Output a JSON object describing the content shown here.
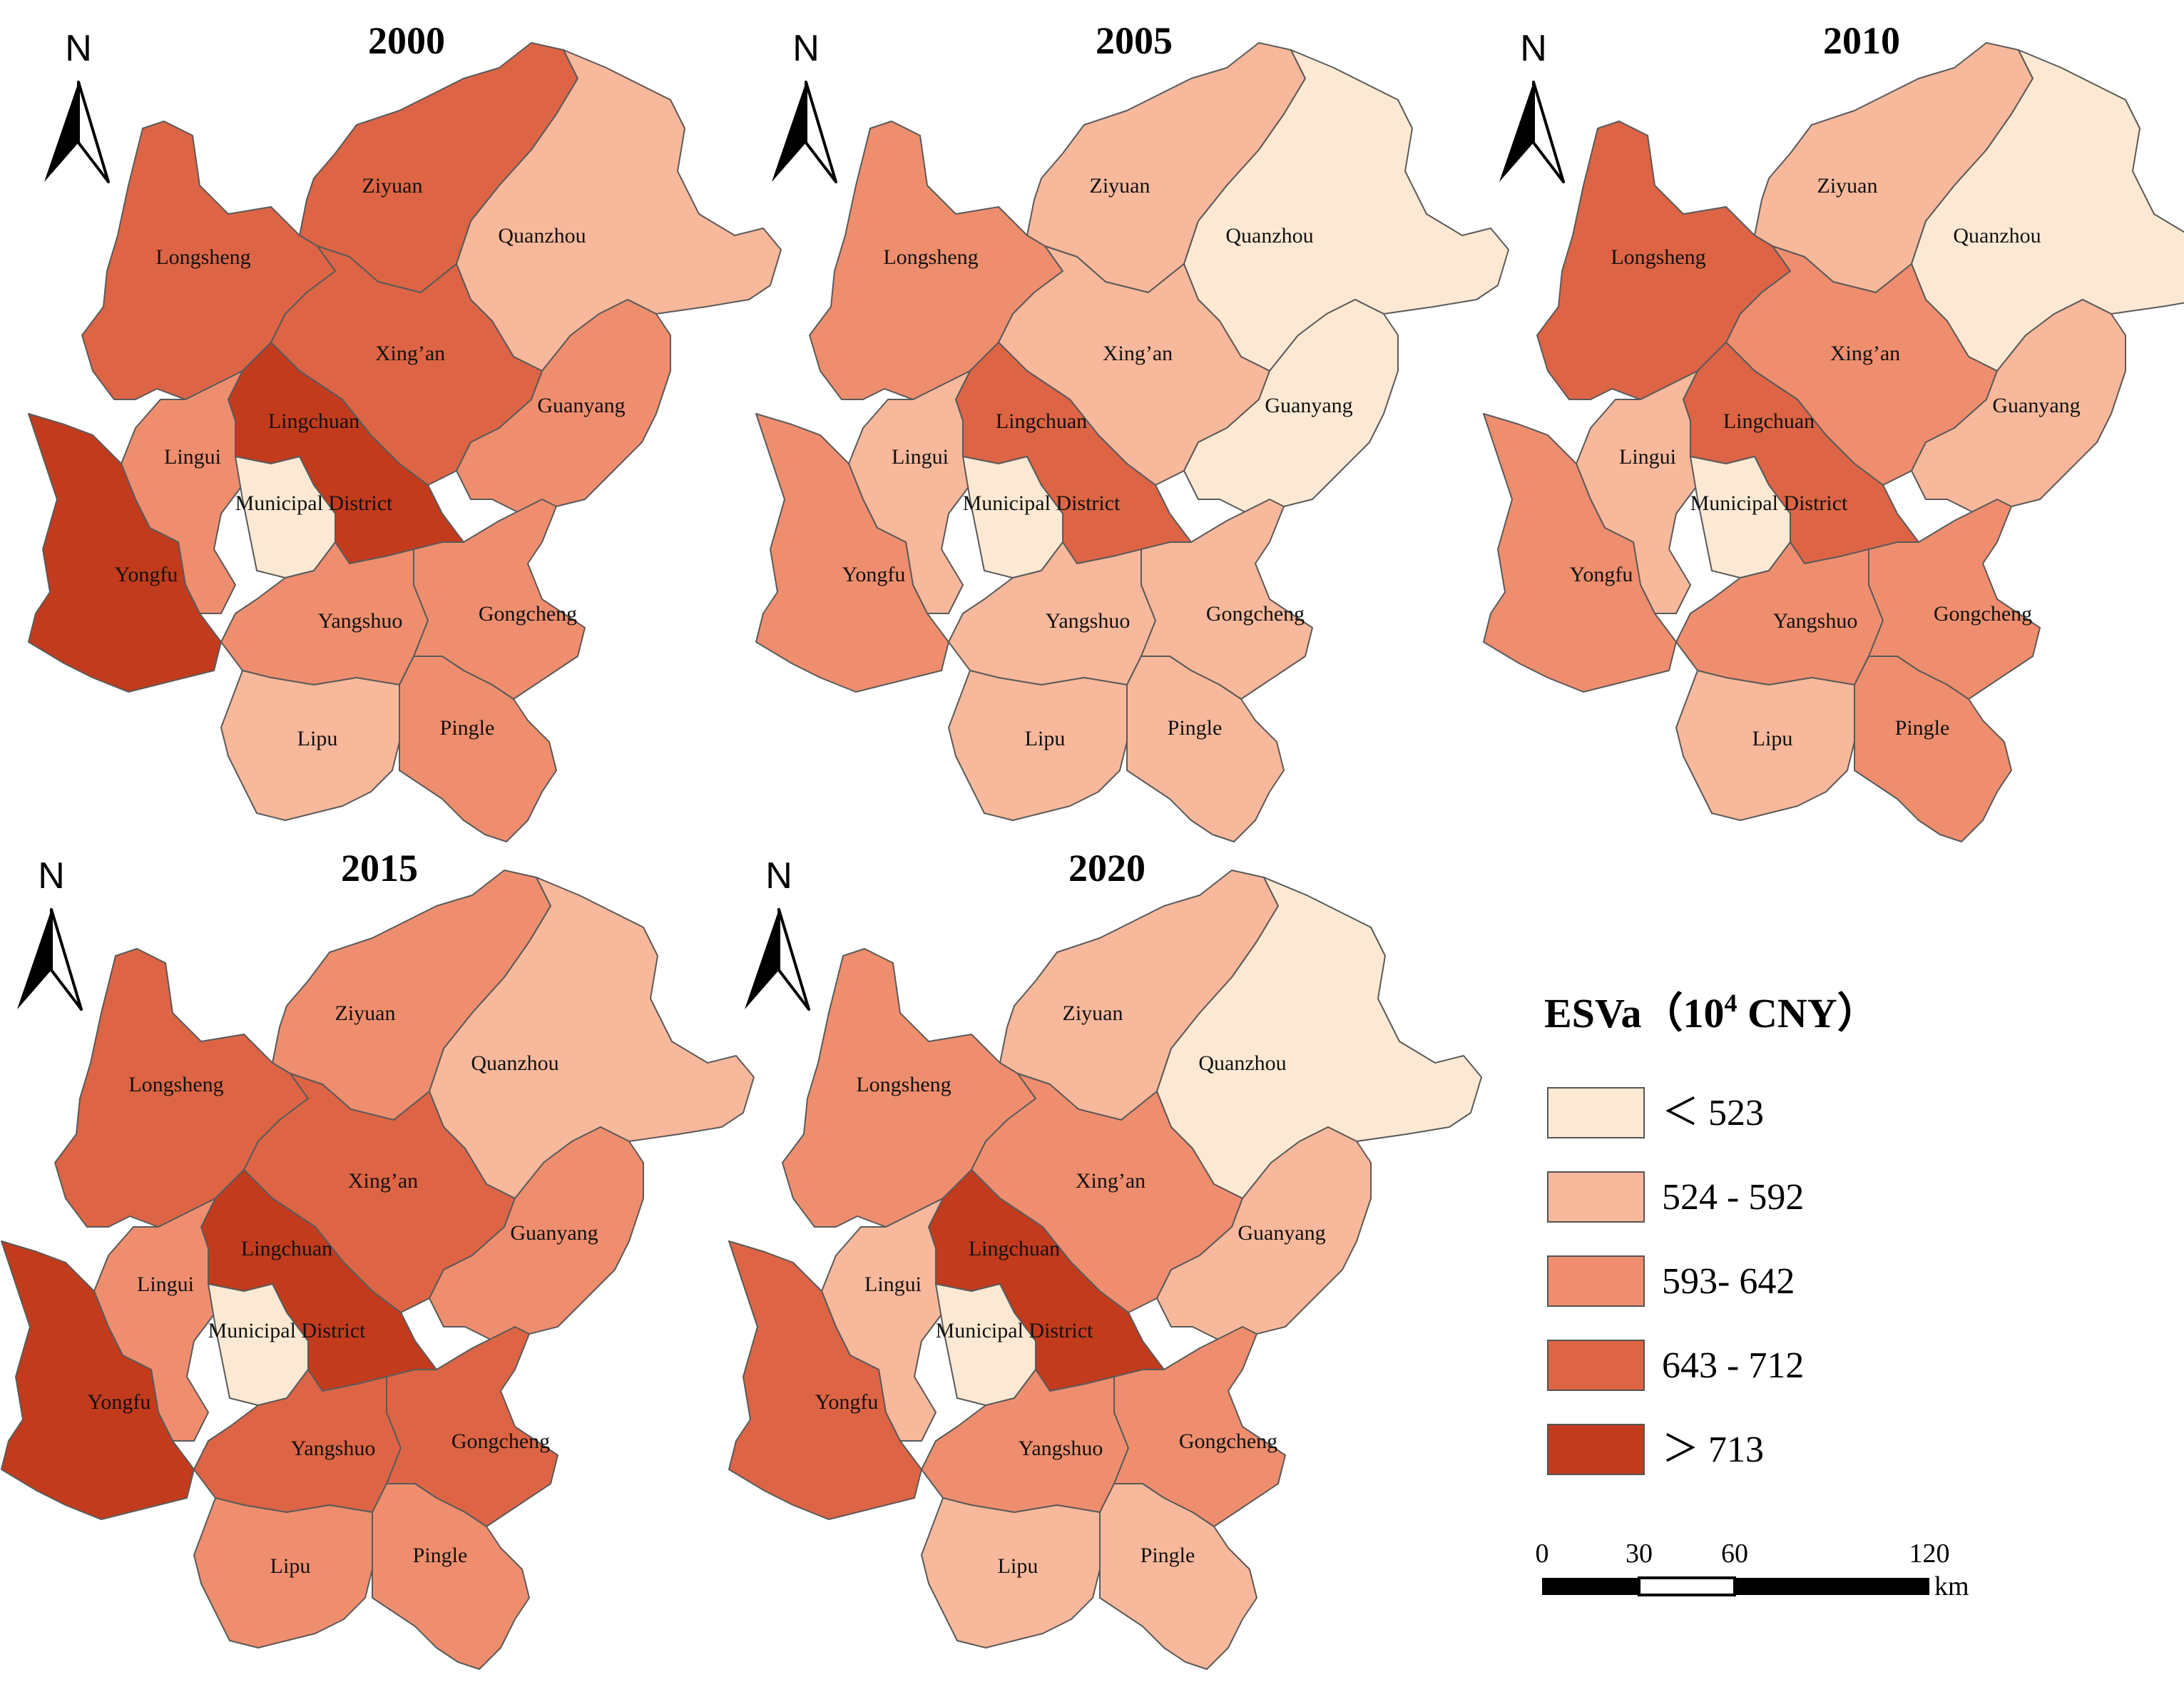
{
  "legend": {
    "title": "ESVa（10",
    "title_sup": "4",
    "title_end": " CNY）",
    "classes": [
      {
        "label": "＜ 523",
        "color": "#fde9d3"
      },
      {
        "label": "524 - 592",
        "color": "#f8b89b"
      },
      {
        "label": "593- 642",
        "color": "#ef8e6e"
      },
      {
        "label": "643 - 712",
        "color": "#dd6545"
      },
      {
        "label": "＞ 713",
        "color": "#c33b1d"
      }
    ]
  },
  "scale_bar": {
    "ticks": [
      "0",
      "30",
      "60",
      "120"
    ],
    "unit": "km"
  },
  "north_label": "N",
  "region_names": [
    "Ziyuan",
    "Quanzhou",
    "Longsheng",
    "Xing’an",
    "Guanyang",
    "Lingchuan",
    "Lingui",
    "Municipal District",
    "Yongfu",
    "Yangshuo",
    "Gongcheng",
    "Lipu",
    "Pingle"
  ],
  "maps": [
    {
      "year": "2000",
      "classes": {
        "Ziyuan": 3,
        "Quanzhou": 1,
        "Longsheng": 3,
        "Xing’an": 3,
        "Guanyang": 2,
        "Lingchuan": 4,
        "Lingui": 2,
        "Municipal District": 0,
        "Yongfu": 4,
        "Yangshuo": 2,
        "Gongcheng": 2,
        "Lipu": 1,
        "Pingle": 2
      }
    },
    {
      "year": "2005",
      "classes": {
        "Ziyuan": 1,
        "Quanzhou": 0,
        "Longsheng": 2,
        "Xing’an": 1,
        "Guanyang": 0,
        "Lingchuan": 3,
        "Lingui": 1,
        "Municipal District": 0,
        "Yongfu": 2,
        "Yangshuo": 1,
        "Gongcheng": 1,
        "Lipu": 1,
        "Pingle": 1
      }
    },
    {
      "year": "2010",
      "classes": {
        "Ziyuan": 1,
        "Quanzhou": 0,
        "Longsheng": 3,
        "Xing’an": 2,
        "Guanyang": 1,
        "Lingchuan": 3,
        "Lingui": 1,
        "Municipal District": 0,
        "Yongfu": 2,
        "Yangshuo": 2,
        "Gongcheng": 2,
        "Lipu": 1,
        "Pingle": 2
      }
    },
    {
      "year": "2015",
      "classes": {
        "Ziyuan": 2,
        "Quanzhou": 1,
        "Longsheng": 3,
        "Xing’an": 3,
        "Guanyang": 2,
        "Lingchuan": 4,
        "Lingui": 2,
        "Municipal District": 0,
        "Yongfu": 4,
        "Yangshuo": 3,
        "Gongcheng": 3,
        "Lipu": 2,
        "Pingle": 2
      }
    },
    {
      "year": "2020",
      "classes": {
        "Ziyuan": 1,
        "Quanzhou": 0,
        "Longsheng": 2,
        "Xing’an": 2,
        "Guanyang": 1,
        "Lingchuan": 4,
        "Lingui": 1,
        "Municipal District": 0,
        "Yongfu": 3,
        "Yangshuo": 2,
        "Gongcheng": 2,
        "Lipu": 1,
        "Pingle": 1
      }
    }
  ]
}
